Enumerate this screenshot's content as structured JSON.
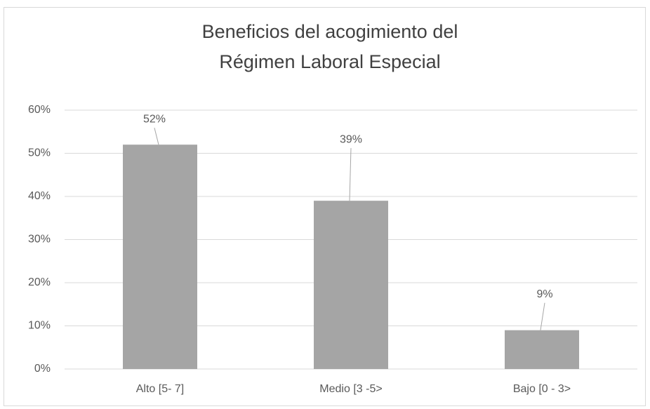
{
  "chart_data": {
    "type": "bar",
    "title": [
      "Beneficios del acogimiento del",
      "Régimen Laboral Especial"
    ],
    "categories": [
      "Alto [5- 7]",
      "Medio [3 -5>",
      "Bajo [0 - 3>"
    ],
    "values": [
      52,
      39,
      9
    ],
    "value_labels": [
      "52%",
      "39%",
      "9%"
    ],
    "color": "#a5a5a5",
    "ylim": [
      0,
      60
    ],
    "yticks": [
      {
        "value": 0,
        "label": "0%"
      },
      {
        "value": 10,
        "label": "10%"
      },
      {
        "value": 20,
        "label": "20%"
      },
      {
        "value": 30,
        "label": "30%"
      },
      {
        "value": 40,
        "label": "40%"
      },
      {
        "value": 50,
        "label": "50%"
      },
      {
        "value": 60,
        "label": "60%"
      }
    ],
    "grid": true
  }
}
